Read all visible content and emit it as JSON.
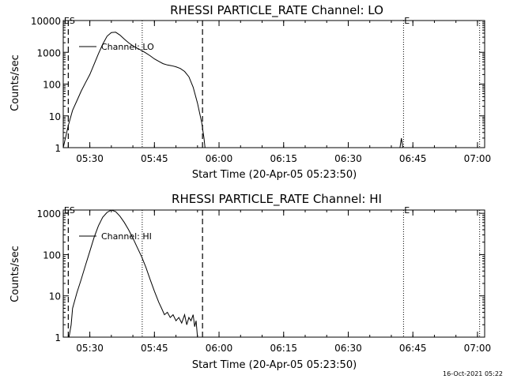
{
  "timestamp": "16-Oct-2021 05:22",
  "chart_data": [
    {
      "type": "line",
      "title": "RHESSI PARTICLE_RATE Channel: LO",
      "xlabel": "Start Time (20-Apr-05 05:23:50)",
      "ylabel": "Counts/sec",
      "yscale": "log",
      "xlim": [
        "05:23:50",
        "07:01:40"
      ],
      "ylim": [
        1,
        10000
      ],
      "xticks": [
        "05:30",
        "05:45",
        "06:00",
        "06:15",
        "06:30",
        "06:45",
        "07:00"
      ],
      "yticks": [
        "1",
        "10",
        "100",
        "1000",
        "10000"
      ],
      "vlines": [
        {
          "time": "05:25:00",
          "style": "dashed"
        },
        {
          "time": "05:42:10",
          "style": "dotted"
        },
        {
          "time": "05:56:10",
          "style": "dashed"
        },
        {
          "time": "06:42:50",
          "style": "dotted"
        },
        {
          "time": "07:00:30",
          "style": "dotted"
        }
      ],
      "markers": [
        {
          "time": "05:24:00",
          "label": "ES"
        },
        {
          "time": "06:43:00",
          "label": "E"
        }
      ],
      "series": [
        {
          "name": "Channel: LO",
          "x": [
            "05:23:50",
            "05:25:00",
            "05:26:00",
            "05:27:00",
            "05:28:00",
            "05:29:00",
            "05:30:00",
            "05:31:00",
            "05:32:00",
            "05:33:00",
            "05:34:00",
            "05:35:00",
            "05:36:00",
            "05:37:00",
            "05:38:00",
            "05:39:00",
            "05:40:00",
            "05:41:00",
            "05:42:00",
            "05:43:00",
            "05:44:00",
            "05:45:00",
            "05:46:00",
            "05:47:00",
            "05:48:00",
            "05:49:00",
            "05:50:00",
            "05:51:00",
            "05:52:00",
            "05:53:00",
            "05:54:00",
            "05:55:00",
            "05:56:00",
            "05:56:30",
            "05:56:45"
          ],
          "y": [
            1,
            5,
            15,
            30,
            60,
            110,
            200,
            420,
            900,
            1800,
            3200,
            4200,
            4300,
            3500,
            2600,
            2000,
            1600,
            1350,
            1150,
            950,
            780,
            620,
            520,
            440,
            400,
            380,
            350,
            310,
            250,
            170,
            80,
            25,
            6,
            2,
            1
          ]
        }
      ],
      "extra_series": [
        {
          "x": [
            "06:42:00",
            "06:42:20",
            "06:42:40"
          ],
          "y": [
            1,
            2,
            1
          ]
        }
      ]
    },
    {
      "type": "line",
      "title": "RHESSI PARTICLE_RATE Channel: HI",
      "xlabel": "Start Time (20-Apr-05 05:23:50)",
      "ylabel": "Counts/sec",
      "yscale": "log",
      "xlim": [
        "05:23:50",
        "07:01:40"
      ],
      "ylim": [
        1,
        1200
      ],
      "xticks": [
        "05:30",
        "05:45",
        "06:00",
        "06:15",
        "06:30",
        "06:45",
        "07:00"
      ],
      "yticks": [
        "1",
        "10",
        "100",
        "1000"
      ],
      "vlines": [
        {
          "time": "05:25:00",
          "style": "dashed"
        },
        {
          "time": "05:42:10",
          "style": "dotted"
        },
        {
          "time": "05:56:10",
          "style": "dashed"
        },
        {
          "time": "06:42:50",
          "style": "dotted"
        },
        {
          "time": "07:00:30",
          "style": "dotted"
        }
      ],
      "markers": [
        {
          "time": "05:24:00",
          "label": "ES"
        },
        {
          "time": "06:43:00",
          "label": "E"
        }
      ],
      "series": [
        {
          "name": "Channel: HI",
          "x": [
            "05:25:10",
            "05:25:40",
            "05:26:00",
            "05:27:00",
            "05:28:00",
            "05:29:00",
            "05:30:00",
            "05:31:00",
            "05:32:00",
            "05:33:00",
            "05:34:00",
            "05:35:00",
            "05:36:00",
            "05:37:00",
            "05:38:00",
            "05:39:00",
            "05:40:00",
            "05:41:00",
            "05:42:00",
            "05:43:00",
            "05:44:00",
            "05:45:00",
            "05:46:00",
            "05:46:40",
            "05:47:20",
            "05:48:00",
            "05:48:40",
            "05:49:20",
            "05:50:00",
            "05:50:40",
            "05:51:20",
            "05:52:00",
            "05:52:30",
            "05:53:00",
            "05:53:30",
            "05:54:00",
            "05:54:20",
            "05:54:40",
            "05:55:00"
          ],
          "y": [
            1,
            2,
            5,
            12,
            25,
            55,
            120,
            260,
            500,
            800,
            1050,
            1200,
            1100,
            850,
            600,
            400,
            250,
            150,
            90,
            50,
            25,
            13,
            7,
            5,
            3.5,
            4,
            3,
            3.5,
            2.5,
            3,
            2.2,
            3.5,
            2,
            3,
            2.5,
            3.5,
            1.8,
            2.5,
            1
          ]
        }
      ]
    }
  ]
}
